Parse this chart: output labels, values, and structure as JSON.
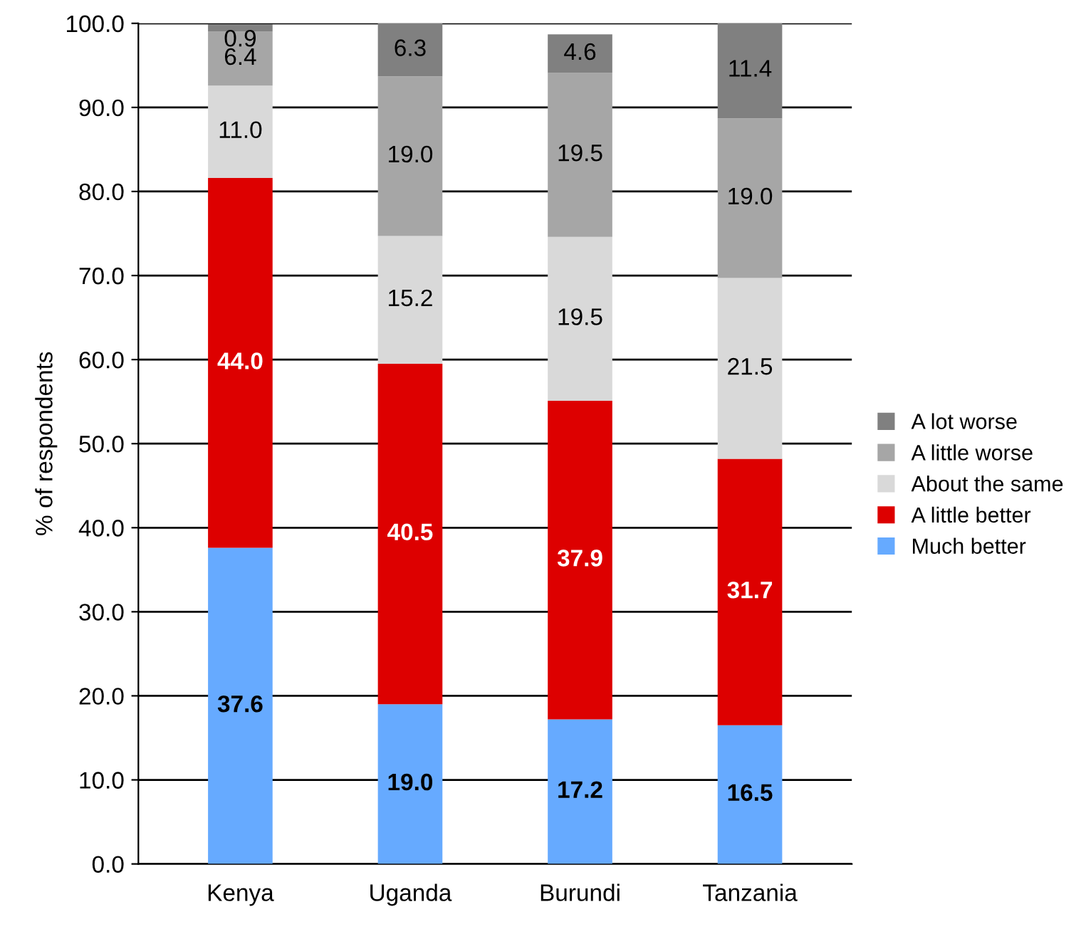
{
  "chart_data": {
    "type": "bar",
    "stacked": true,
    "ylabel": "% of respondents",
    "categories": [
      "Kenya",
      "Uganda",
      "Burundi",
      "Tanzania"
    ],
    "series": [
      {
        "name": "Much better",
        "color": "#66aaff",
        "values": [
          37.6,
          19.0,
          17.2,
          16.5
        ],
        "value_labels": [
          "37.6",
          "19.0",
          "17.2",
          "16.5"
        ]
      },
      {
        "name": "A little better",
        "color": "#dd0000",
        "values": [
          44.0,
          40.5,
          37.9,
          31.7
        ],
        "value_labels": [
          "44.0",
          "40.5",
          "37.9",
          "31.7"
        ]
      },
      {
        "name": "About the same",
        "color": "#d9d9d9",
        "values": [
          11.0,
          15.2,
          19.5,
          21.5
        ],
        "value_labels": [
          "11.0",
          "15.2",
          "19.5",
          "21.5"
        ]
      },
      {
        "name": "A little worse",
        "color": "#a6a6a6",
        "values": [
          6.4,
          19.0,
          19.5,
          19.0
        ],
        "value_labels": [
          "6.4",
          "19.0",
          "19.5",
          "19.0"
        ]
      },
      {
        "name": "A lot worse",
        "color": "#808080",
        "values": [
          0.9,
          6.3,
          4.6,
          11.4
        ],
        "value_labels": [
          "0.9",
          "6.3",
          "4.6",
          "11.4"
        ]
      }
    ],
    "ylim": [
      0,
      100
    ],
    "yticks": [
      {
        "value": 0,
        "label": "0.0"
      },
      {
        "value": 10,
        "label": "10.0"
      },
      {
        "value": 20,
        "label": "20.0"
      },
      {
        "value": 30,
        "label": "30.0"
      },
      {
        "value": 40,
        "label": "40.0"
      },
      {
        "value": 50,
        "label": "50.0"
      },
      {
        "value": 60,
        "label": "60.0"
      },
      {
        "value": 70,
        "label": "70.0"
      },
      {
        "value": 80,
        "label": "80.0"
      },
      {
        "value": 90,
        "label": "90.0"
      },
      {
        "value": 100,
        "label": "100.0"
      }
    ],
    "grid": "y",
    "legend": "right"
  }
}
